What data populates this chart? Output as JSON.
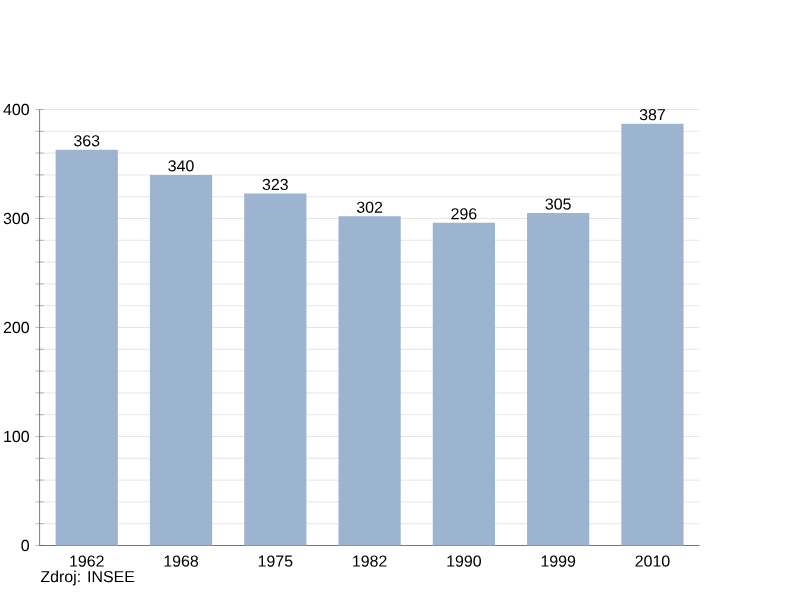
{
  "chart_data": {
    "type": "bar",
    "categories": [
      "1962",
      "1968",
      "1975",
      "1982",
      "1990",
      "1999",
      "2010"
    ],
    "values": [
      363,
      340,
      323,
      302,
      296,
      305,
      387
    ],
    "color": "#9cb4d0",
    "ylim": [
      0,
      400
    ],
    "yticks": [
      0,
      {
        "value": 20,
        "label": null
      },
      {
        "value": 40,
        "label": null
      },
      {
        "value": 60,
        "label": null
      },
      {
        "value": 80,
        "label": null
      },
      100,
      {
        "value": 120,
        "label": null
      },
      {
        "value": 140,
        "label": null
      },
      {
        "value": 160,
        "label": null
      },
      {
        "value": 180,
        "label": null
      },
      200,
      {
        "value": 220,
        "label": null
      },
      {
        "value": 240,
        "label": null
      },
      {
        "value": 260,
        "label": null
      },
      {
        "value": 280,
        "label": null
      },
      300,
      {
        "value": 320,
        "label": null
      },
      {
        "value": 340,
        "label": null
      },
      {
        "value": 360,
        "label": null
      },
      {
        "value": 380,
        "label": null
      },
      400
    ],
    "grid": "y",
    "data_labels": true,
    "annotations": [
      "Zdroj: INSEE"
    ]
  }
}
